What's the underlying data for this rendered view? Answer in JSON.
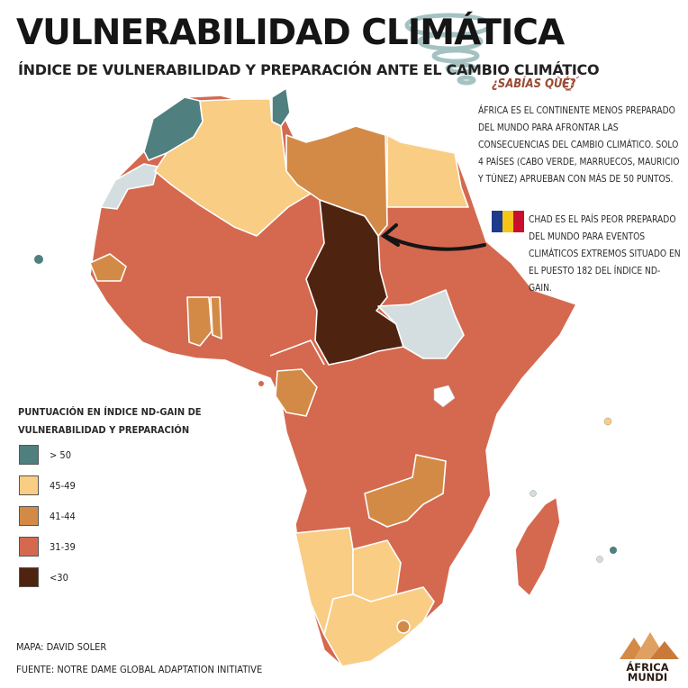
{
  "header": {
    "title": "VULNERABILIDAD CLIMÁTICA",
    "subtitle": "ÍNDICE DE VULNERABILIDAD Y PREPARACIÓN ANTE EL CAMBIO CLIMÁTICO"
  },
  "fact_box": {
    "title": "¿SABÍAS QUÉ?",
    "text": "ÁFRICA ES EL CONTINENTE MENOS PREPARADO DEL MUNDO PARA AFRONTAR LAS CONSECUENCIAS DEL CAMBIO CLIMÁTICO. SOLO 4 PAÍSES (CABO VERDE, MARRUECOS, MAURICIO Y TÚNEZ) APRUEBAN CON MÁS DE 50 PUNTOS."
  },
  "chad_note": "CHAD ES EL PAÍS PEOR PREPARADO DEL MUNDO PARA EVENTOS CLIMÁTICOS EXTREMOS SITUADO EN EL PUESTO 182 DEL ÍNDICE ND-GAIN.",
  "legend": {
    "title": "PUNTUACIÓN EN ÍNDICE ND-GAIN DE VULNERABILIDAD Y PREPARACIÓN",
    "items": [
      {
        "label": "> 50",
        "color": "#4f7f7f"
      },
      {
        "label": "45-49",
        "color": "#f9cd84"
      },
      {
        "label": "41-44",
        "color": "#d38a46"
      },
      {
        "label": "31-39",
        "color": "#d4694f"
      },
      {
        "label": "<30",
        "color": "#4e2411"
      }
    ],
    "no_data_color": "#d4dde0"
  },
  "credits": {
    "map": "MAPA: DAVID SOLER",
    "source": "FUENTE: NOTRE DAME GLOBAL ADAPTATION INITIATIVE"
  },
  "logo": {
    "line1": "ÁFRICA",
    "line2": "MUNDI"
  },
  "icons": [
    "tornado-icon",
    "lightbulb-icon",
    "chad-flag-icon",
    "arrow-icon"
  ]
}
